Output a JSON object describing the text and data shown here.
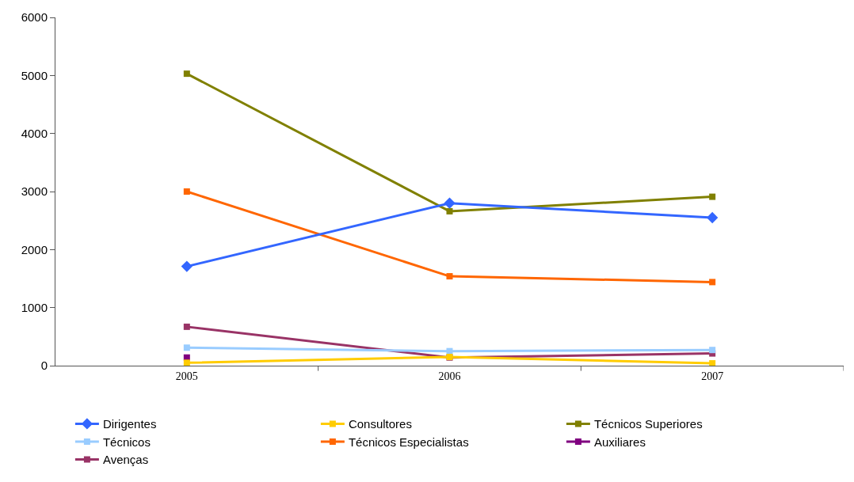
{
  "chart_data": {
    "type": "line",
    "categories": [
      "2005",
      "2006",
      "2007"
    ],
    "ylim": [
      0,
      6000
    ],
    "yticks": [
      0,
      1000,
      2000,
      3000,
      4000,
      5000,
      6000
    ],
    "grid": false,
    "legend": "bottom",
    "series": [
      {
        "name": "Dirigentes",
        "color": "#3366ff",
        "marker": "diamond",
        "values": [
          1710,
          2800,
          2550
        ]
      },
      {
        "name": "Consultores",
        "color": "#ffcc00",
        "marker": "square",
        "values": [
          50,
          150,
          40
        ]
      },
      {
        "name": "Técnicos Superiores",
        "color": "#808000",
        "marker": "square",
        "values": [
          5030,
          2660,
          2910
        ]
      },
      {
        "name": "Técnicos",
        "color": "#99ccff",
        "marker": "square",
        "values": [
          310,
          250,
          270
        ]
      },
      {
        "name": "Técnicos Especialistas",
        "color": "#ff6600",
        "marker": "square",
        "values": [
          3000,
          1540,
          1440
        ]
      },
      {
        "name": "Auxiliares",
        "color": "#800080",
        "marker": "square",
        "values": [
          140,
          null,
          null
        ]
      },
      {
        "name": "Avenças",
        "color": "#993366",
        "marker": "square",
        "values": [
          670,
          140,
          210
        ]
      }
    ]
  }
}
